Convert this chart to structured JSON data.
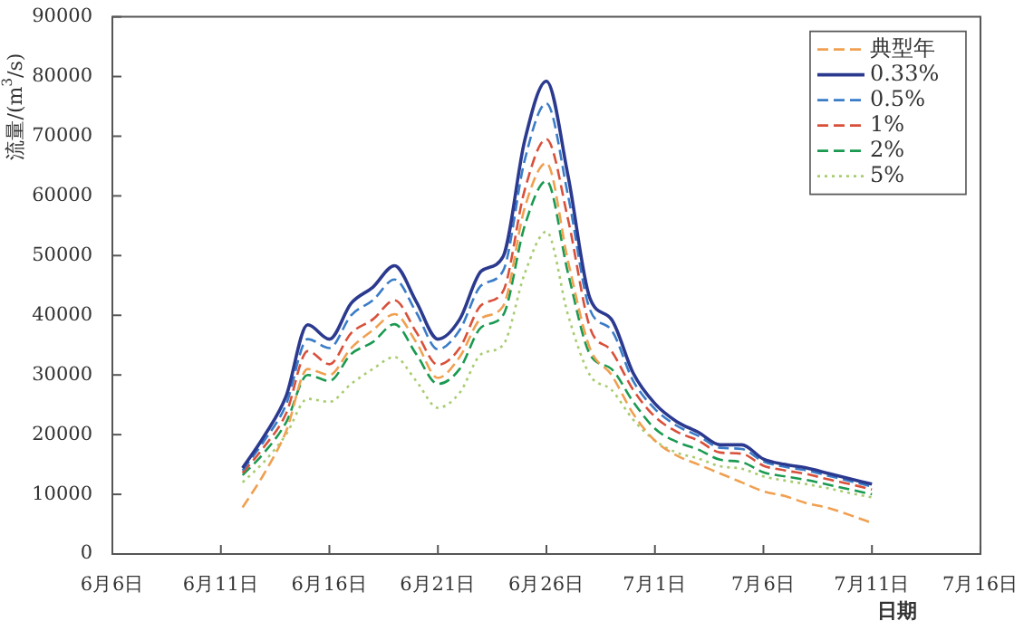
{
  "chart_data": {
    "type": "line",
    "xlabel": "日期",
    "ylabel": "流量/(m$^{3}$/s)",
    "x": [
      "--06-12",
      "--06-13",
      "--06-14",
      "--06-15",
      "--06-16",
      "--06-17",
      "--06-18",
      "--06-19",
      "--06-20",
      "--06-21",
      "--06-22",
      "--06-23",
      "--06-24",
      "--06-25",
      "--06-26",
      "--06-27",
      "--06-28",
      "--06-29",
      "--06-30",
      "--07-01",
      "--07-02",
      "--07-03",
      "--07-04",
      "--07-05",
      "--07-06",
      "--07-07",
      "--07-08",
      "--07-09",
      "--07-10",
      "--07-11"
    ],
    "series": [
      {
        "name": "典型年",
        "color": "#f0a050",
        "line_style": "dashed",
        "values": [
          7800,
          13500,
          20500,
          31000,
          30000,
          34500,
          37500,
          40200,
          35500,
          29500,
          33000,
          39500,
          41500,
          58000,
          65500,
          49000,
          34500,
          30000,
          23500,
          19000,
          16500,
          15000,
          13500,
          12000,
          10500,
          9700,
          8500,
          7700,
          6500,
          5200
        ]
      },
      {
        "name": "0.33%",
        "color": "#2b3a8f",
        "line_style": "solid",
        "values": [
          14400,
          19800,
          26400,
          38400,
          36000,
          42000,
          44700,
          48300,
          42300,
          36000,
          39300,
          47400,
          49800,
          69300,
          79200,
          63300,
          42900,
          39300,
          30300,
          25200,
          22200,
          20400,
          18300,
          18300,
          15900,
          15000,
          14400,
          13500,
          12600,
          11700
        ]
      },
      {
        "name": "0.5%",
        "color": "#3a7cc8",
        "line_style": "dashed",
        "values": [
          14000,
          19000,
          25000,
          36000,
          34500,
          40000,
          42500,
          46000,
          40500,
          34300,
          37500,
          45000,
          47400,
          66000,
          75500,
          60000,
          41000,
          37500,
          29000,
          24300,
          21500,
          19800,
          17800,
          17600,
          15500,
          14600,
          14000,
          13100,
          12200,
          11300
        ]
      },
      {
        "name": "1%",
        "color": "#d9503a",
        "line_style": "dashed",
        "values": [
          13600,
          18000,
          23500,
          34000,
          31800,
          37000,
          39300,
          42500,
          37200,
          31700,
          34500,
          41700,
          44000,
          61000,
          69500,
          56000,
          38000,
          34000,
          27500,
          23000,
          20500,
          19000,
          17000,
          16800,
          14800,
          14000,
          13400,
          12500,
          11700,
          10800
        ]
      },
      {
        "name": "2%",
        "color": "#1a9a50",
        "line_style": "dashed",
        "values": [
          13200,
          17000,
          22000,
          30000,
          29000,
          33500,
          35500,
          38500,
          33500,
          28500,
          31000,
          38000,
          40000,
          55000,
          62500,
          47000,
          33500,
          31000,
          25500,
          21000,
          18800,
          17500,
          15800,
          15400,
          13700,
          13000,
          12400,
          11600,
          10800,
          10000
        ]
      },
      {
        "name": "5%",
        "color": "#a8cc70",
        "line_style": "dotted",
        "values": [
          12000,
          15500,
          20000,
          26000,
          25500,
          28500,
          31000,
          33000,
          29000,
          24500,
          27000,
          33500,
          35000,
          47000,
          54000,
          40000,
          30000,
          27500,
          22500,
          19000,
          17000,
          16000,
          14700,
          14300,
          13000,
          12300,
          11700,
          11000,
          10200,
          9500
        ]
      }
    ],
    "xlim": [
      "--06-06",
      "--07-16"
    ],
    "xticks": [
      {
        "value": "--06-06",
        "label": "6月6日"
      },
      {
        "value": "--06-11",
        "label": "6月11日"
      },
      {
        "value": "--06-16",
        "label": "6月16日"
      },
      {
        "value": "--06-21",
        "label": "6月21日"
      },
      {
        "value": "--06-26",
        "label": "6月26日"
      },
      {
        "value": "--07-01",
        "label": "7月1日"
      },
      {
        "value": "--07-06",
        "label": "7月6日"
      },
      {
        "value": "--07-11",
        "label": "7月11日"
      },
      {
        "value": "--07-16",
        "label": "7月16日"
      }
    ],
    "ylim": [
      0,
      90000
    ],
    "yticks": [
      0,
      10000,
      20000,
      30000,
      40000,
      50000,
      60000,
      70000,
      80000,
      90000
    ],
    "grid": false,
    "legend": "top right",
    "marker": "none"
  }
}
